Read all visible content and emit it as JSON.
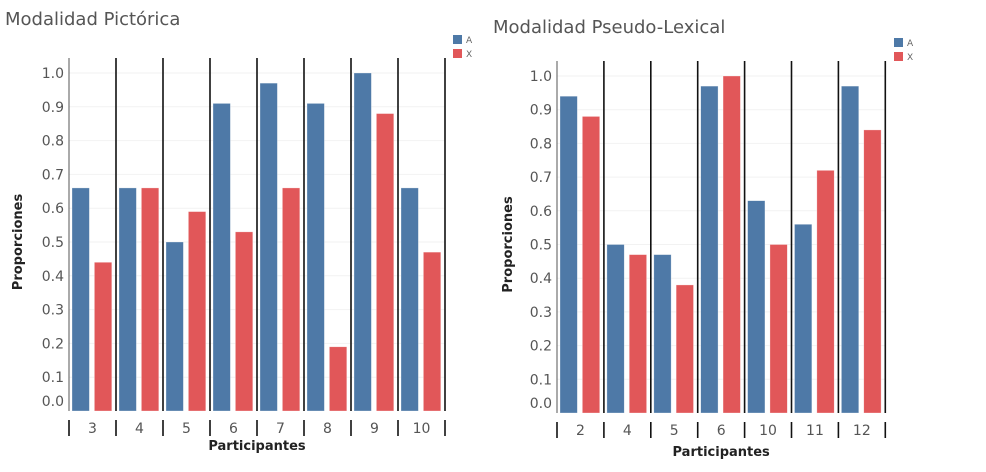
{
  "chart_data": [
    {
      "type": "bar",
      "title": "Modalidad Pictórica",
      "xlabel": "Participantes",
      "ylabel": "Proporciones",
      "ylim": [
        0,
        1.0
      ],
      "yticks": [
        "0.0",
        "0.1",
        "0.2",
        "0.3",
        "0.4",
        "0.5",
        "0.6",
        "0.7",
        "0.8",
        "0.9",
        "1.0"
      ],
      "categories": [
        "3",
        "4",
        "5",
        "6",
        "7",
        "8",
        "9",
        "10"
      ],
      "series": [
        {
          "name": "A",
          "color": "#4e79a7",
          "values": [
            0.66,
            0.66,
            0.5,
            0.91,
            0.97,
            0.91,
            1.0,
            0.66
          ]
        },
        {
          "name": "X",
          "color": "#e15759",
          "values": [
            0.44,
            0.66,
            0.59,
            0.53,
            0.66,
            0.19,
            0.88,
            0.47
          ]
        }
      ],
      "legend": "top-right",
      "grid": true
    },
    {
      "type": "bar",
      "title": "Modalidad Pseudo-Lexical",
      "xlabel": "Participantes",
      "ylabel": "Proporciones",
      "ylim": [
        0,
        1.0
      ],
      "yticks": [
        "0.0",
        "0.1",
        "0.2",
        "0.3",
        "0.4",
        "0.5",
        "0.6",
        "0.7",
        "0.8",
        "0.9",
        "1.0"
      ],
      "categories": [
        "2",
        "4",
        "5",
        "6",
        "10",
        "11",
        "12"
      ],
      "series": [
        {
          "name": "A",
          "color": "#4e79a7",
          "values": [
            0.94,
            0.5,
            0.47,
            0.97,
            0.63,
            0.56,
            0.97
          ]
        },
        {
          "name": "X",
          "color": "#e15759",
          "values": [
            0.88,
            0.47,
            0.38,
            1.0,
            0.5,
            0.72,
            0.84
          ]
        }
      ],
      "legend": "top-right",
      "grid": true
    }
  ]
}
